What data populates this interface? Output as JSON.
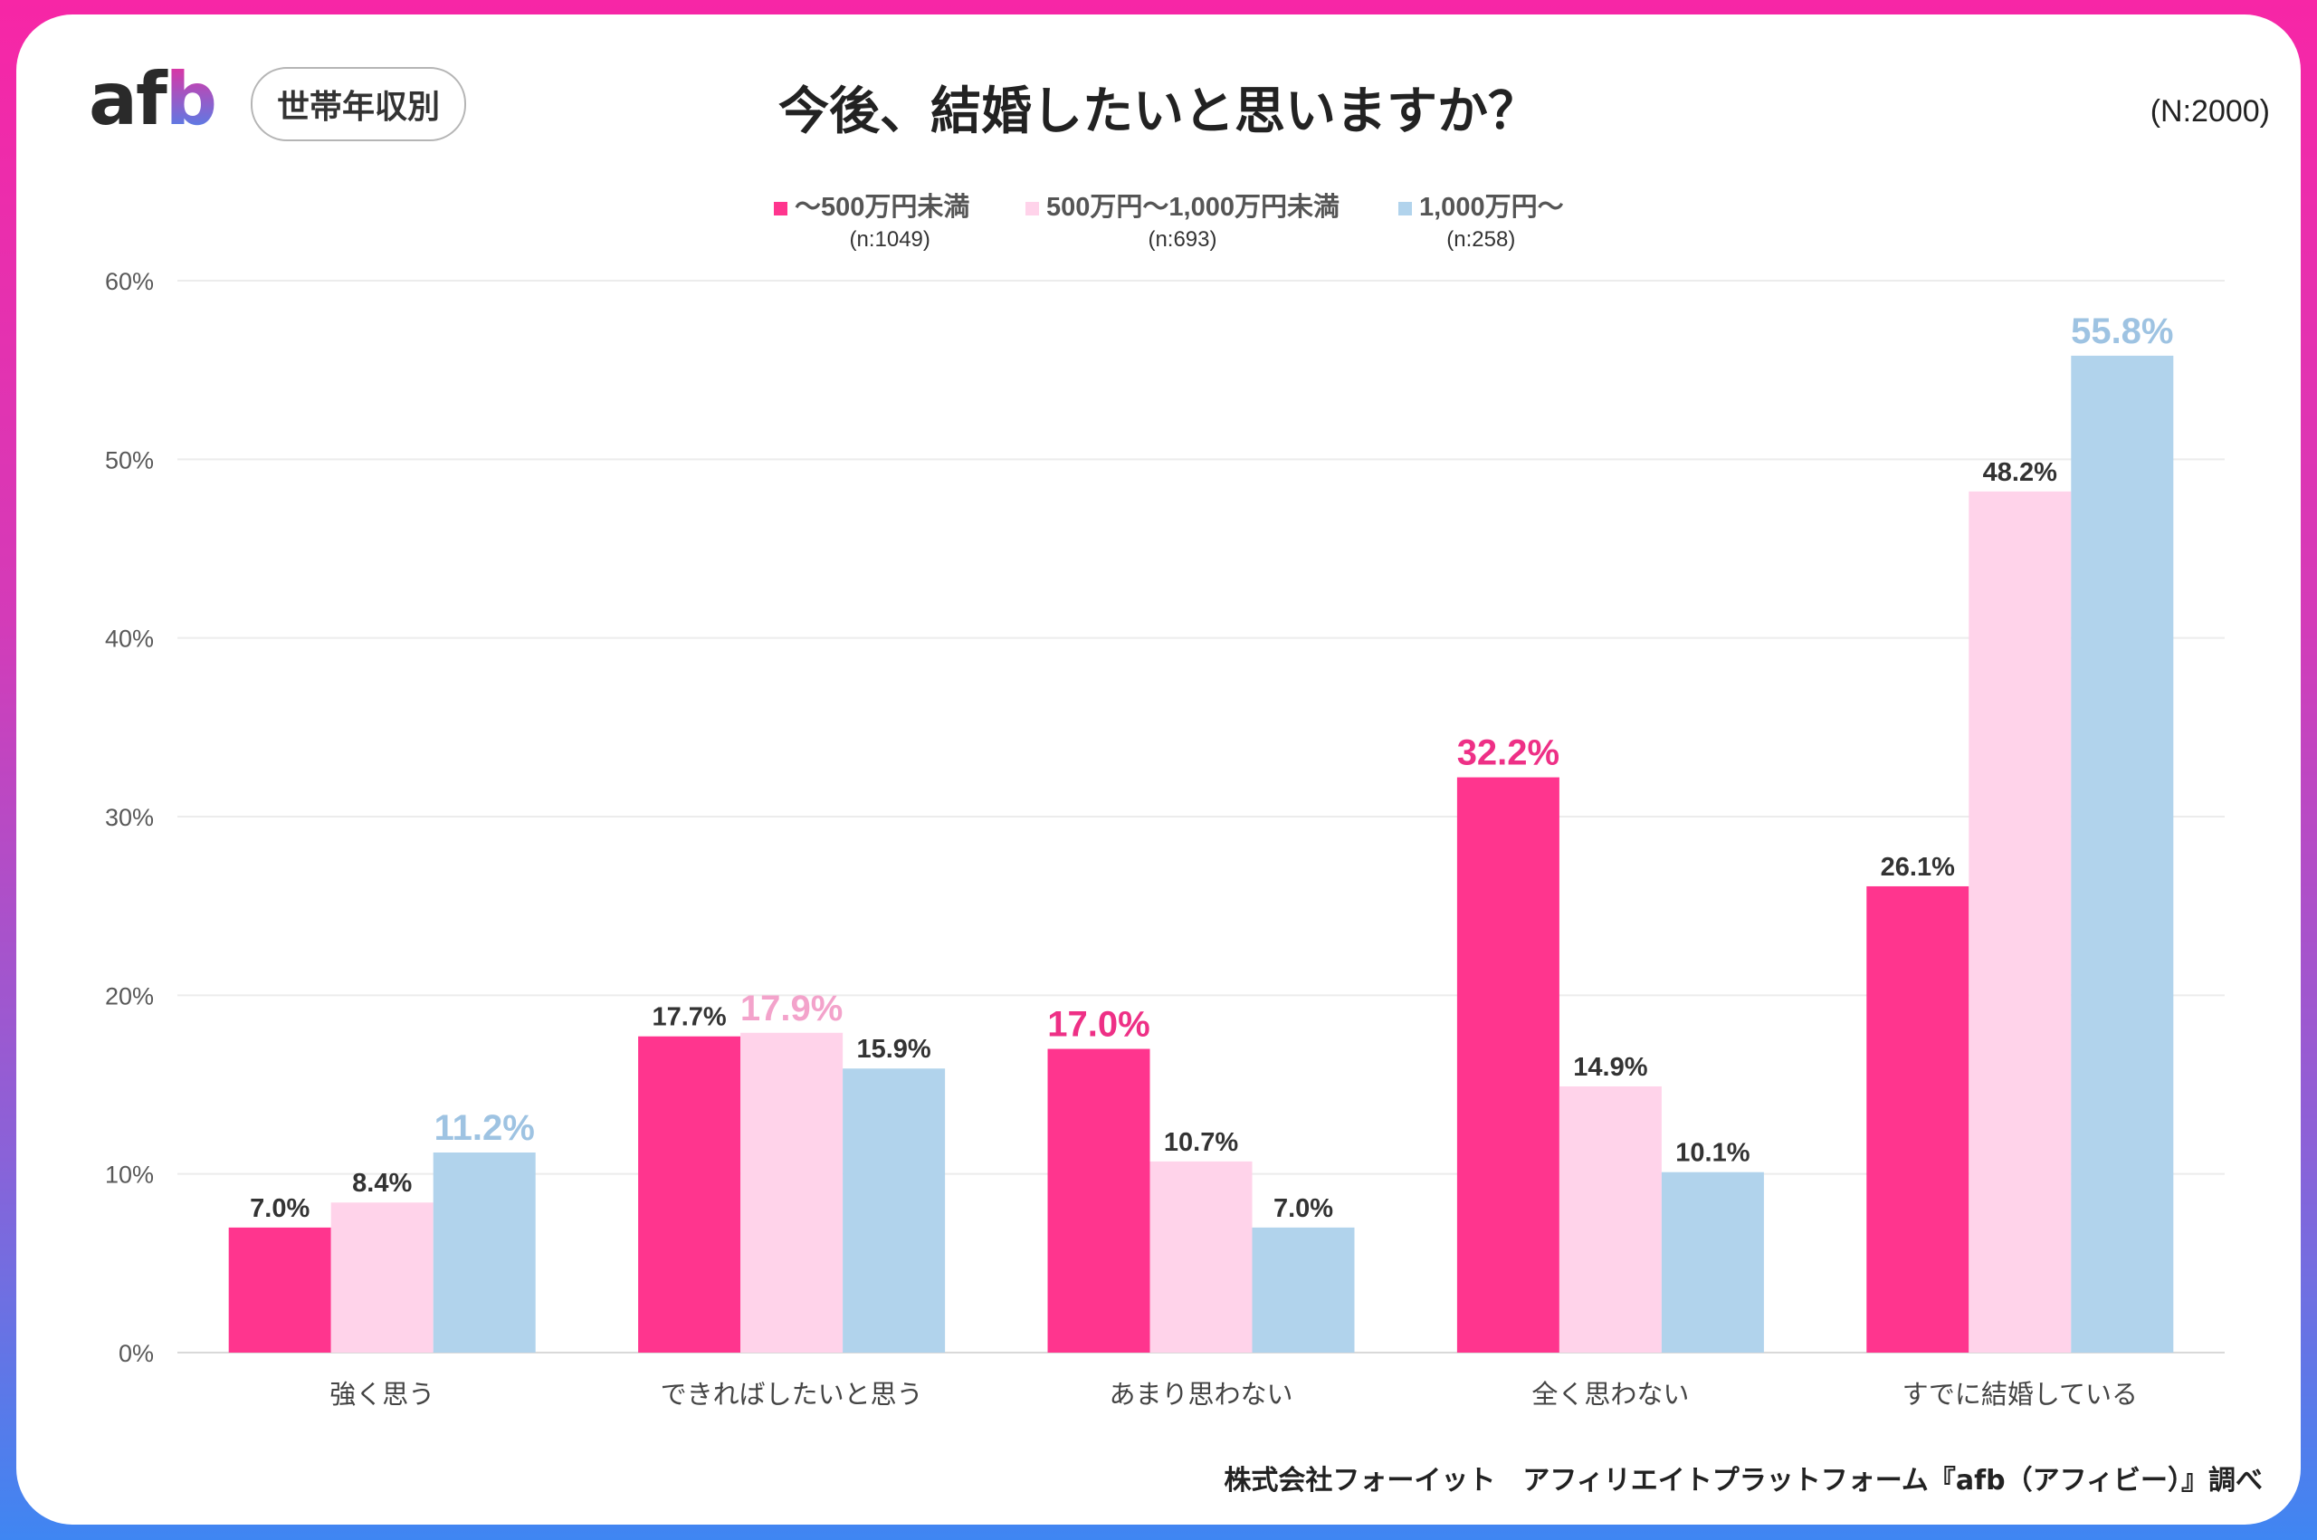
{
  "header": {
    "logo_text": "afb",
    "badge": "世帯年収別",
    "title": "今後、結婚したいと思いますか？",
    "sample_total": "(N:2000)"
  },
  "footer": {
    "source": "株式会社フォーイット　アフィリエイトプラットフォーム『afb（アフィビー）』調べ"
  },
  "chart_data": {
    "type": "bar",
    "title": "今後、結婚したいと思いますか？",
    "categories": [
      "強く思う",
      "できればしたいと思う",
      "あまり思わない",
      "全く思わない",
      "すでに結婚している"
    ],
    "series": [
      {
        "name": "～500万円未満",
        "n": "(n:1049)",
        "color": "#ff358e",
        "highlight_color": "#ee3086",
        "values": [
          7.0,
          17.7,
          17.0,
          32.2,
          26.1
        ]
      },
      {
        "name": "500万円～1,000万円未満",
        "n": "(n:693)",
        "color": "#ffd3ea",
        "highlight_color": "#f3a3cb",
        "values": [
          8.4,
          17.9,
          10.7,
          14.9,
          48.2
        ]
      },
      {
        "name": "1,000万円～",
        "n": "(n:258)",
        "color": "#b1d3ec",
        "highlight_color": "#9ec3e2",
        "values": [
          11.2,
          15.9,
          7.0,
          10.1,
          55.8
        ]
      }
    ],
    "value_labels": [
      [
        "7.0%",
        "17.7%",
        "17.0%",
        "32.2%",
        "26.1%"
      ],
      [
        "8.4%",
        "17.9%",
        "10.7%",
        "14.9%",
        "48.2%"
      ],
      [
        "11.2%",
        "15.9%",
        "7.0%",
        "10.1%",
        "55.8%"
      ]
    ],
    "ylim": [
      0,
      60
    ],
    "yticks": [
      "0%",
      "10%",
      "20%",
      "30%",
      "40%",
      "50%",
      "60%"
    ],
    "grid": true,
    "legend": "top-center",
    "highlight": "group maximum label emphasized in series color"
  }
}
